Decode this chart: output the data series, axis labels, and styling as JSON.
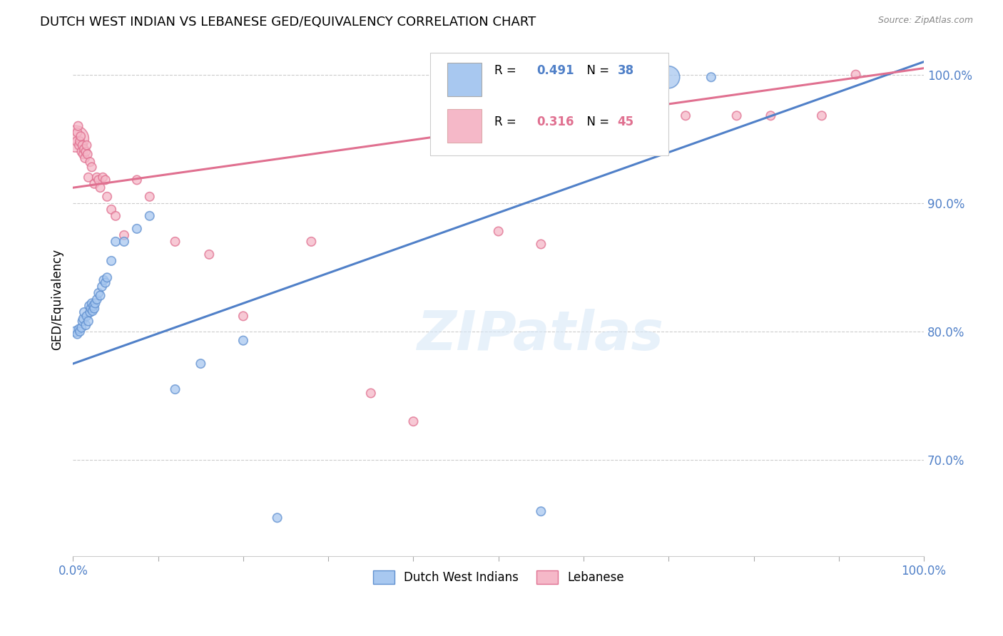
{
  "title": "DUTCH WEST INDIAN VS LEBANESE GED/EQUIVALENCY CORRELATION CHART",
  "source": "Source: ZipAtlas.com",
  "ylabel": "GED/Equivalency",
  "ytick_labels": [
    "70.0%",
    "80.0%",
    "90.0%",
    "100.0%"
  ],
  "ytick_values": [
    0.7,
    0.8,
    0.9,
    1.0
  ],
  "xlim": [
    0.0,
    1.0
  ],
  "ylim": [
    0.625,
    1.025
  ],
  "blue_color": "#a8c8f0",
  "pink_color": "#f5b8c8",
  "blue_edge_color": "#6090d0",
  "pink_edge_color": "#e07090",
  "blue_line_color": "#5080c8",
  "pink_line_color": "#e07090",
  "watermark_text": "ZIPatlas",
  "legend_blue_r": "0.491",
  "legend_blue_n": "38",
  "legend_pink_r": "0.316",
  "legend_pink_n": "45",
  "dutch_x": [
    0.003,
    0.005,
    0.007,
    0.008,
    0.01,
    0.011,
    0.012,
    0.013,
    0.015,
    0.016,
    0.018,
    0.019,
    0.02,
    0.021,
    0.022,
    0.023,
    0.024,
    0.025,
    0.026,
    0.028,
    0.03,
    0.032,
    0.034,
    0.036,
    0.038,
    0.04,
    0.045,
    0.05,
    0.06,
    0.075,
    0.09,
    0.12,
    0.15,
    0.2,
    0.24,
    0.55,
    0.7,
    0.75
  ],
  "dutch_y": [
    0.8,
    0.798,
    0.802,
    0.8,
    0.803,
    0.808,
    0.81,
    0.815,
    0.805,
    0.812,
    0.808,
    0.82,
    0.815,
    0.818,
    0.822,
    0.816,
    0.82,
    0.818,
    0.822,
    0.825,
    0.83,
    0.828,
    0.835,
    0.84,
    0.838,
    0.842,
    0.855,
    0.87,
    0.87,
    0.88,
    0.89,
    0.755,
    0.775,
    0.793,
    0.655,
    0.66,
    0.998,
    0.998
  ],
  "dutch_sizes": [
    100,
    80,
    80,
    80,
    80,
    80,
    80,
    80,
    80,
    80,
    80,
    80,
    80,
    80,
    80,
    80,
    80,
    80,
    80,
    80,
    80,
    80,
    80,
    80,
    80,
    80,
    80,
    80,
    80,
    80,
    80,
    80,
    80,
    80,
    80,
    80,
    500,
    80
  ],
  "leb_x": [
    0.003,
    0.004,
    0.005,
    0.006,
    0.007,
    0.008,
    0.009,
    0.01,
    0.011,
    0.012,
    0.013,
    0.014,
    0.015,
    0.016,
    0.017,
    0.018,
    0.02,
    0.022,
    0.025,
    0.028,
    0.03,
    0.032,
    0.035,
    0.038,
    0.04,
    0.045,
    0.05,
    0.06,
    0.075,
    0.09,
    0.12,
    0.16,
    0.2,
    0.28,
    0.35,
    0.4,
    0.5,
    0.55,
    0.62,
    0.68,
    0.72,
    0.78,
    0.82,
    0.88,
    0.92
  ],
  "leb_y": [
    0.95,
    0.948,
    0.955,
    0.96,
    0.945,
    0.948,
    0.952,
    0.94,
    0.945,
    0.938,
    0.942,
    0.935,
    0.94,
    0.945,
    0.938,
    0.92,
    0.932,
    0.928,
    0.915,
    0.92,
    0.918,
    0.912,
    0.92,
    0.918,
    0.905,
    0.895,
    0.89,
    0.875,
    0.918,
    0.905,
    0.87,
    0.86,
    0.812,
    0.87,
    0.752,
    0.73,
    0.878,
    0.868,
    0.968,
    0.968,
    0.968,
    0.968,
    0.968,
    0.968,
    1.0
  ],
  "leb_sizes": [
    700,
    80,
    80,
    80,
    80,
    80,
    80,
    80,
    80,
    80,
    80,
    80,
    80,
    80,
    80,
    80,
    80,
    80,
    80,
    80,
    80,
    80,
    80,
    80,
    80,
    80,
    80,
    80,
    80,
    80,
    80,
    80,
    80,
    80,
    80,
    80,
    80,
    80,
    80,
    80,
    80,
    80,
    80,
    80,
    80
  ],
  "blue_line_x": [
    0.0,
    1.0
  ],
  "blue_line_y": [
    0.775,
    1.01
  ],
  "pink_line_x": [
    0.0,
    1.0
  ],
  "pink_line_y": [
    0.912,
    1.005
  ]
}
